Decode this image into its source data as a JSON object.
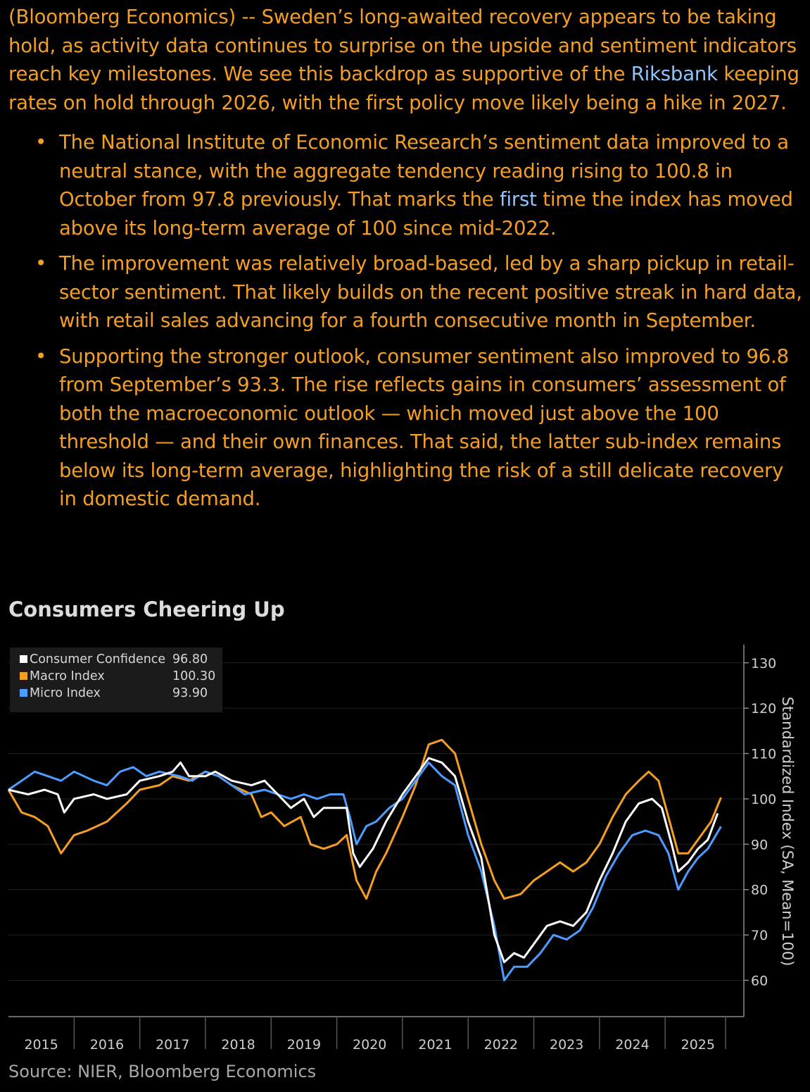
{
  "article": {
    "intro_pre": "(Bloomberg Economics) -- Sweden’s long-awaited recovery appears to be taking hold, as activity data continues to surprise on the upside and sentiment indicators reach key milestones. We see this backdrop as supportive of the ",
    "intro_link": "Riksbank",
    "intro_post": " keeping rates on hold through 2026, with the first policy move likely being a hike in 2027.",
    "bullet1_pre": "The National Institute of Economic Research’s sentiment data improved to a neutral stance, with the aggregate tendency reading rising to 100.8 in October from 97.8 previously. That marks the ",
    "bullet1_link": "first",
    "bullet1_post": " time the index has moved above its long-term average of 100 since mid-2022.",
    "bullet2": "The improvement was relatively broad-based, led by a sharp pickup in retail-sector sentiment. That likely builds on the recent positive streak in hard data, with retail sales advancing for a fourth consecutive month in September.",
    "bullet3": "Supporting the stronger outlook, consumer sentiment also improved to 96.8 from September’s 93.3. The rise reflects gains in consumers’ assessment of both the macroeconomic outlook — which moved just above the 100 threshold — and their own finances. That said, the latter sub-index remains below its long-term average, highlighting the risk of a still delicate recovery in domestic demand."
  },
  "source": "Source: NIER, Bloomberg Economics",
  "chart_data": {
    "type": "line",
    "title": "Consumers Cheering Up",
    "ylabel": "Standardized Index (SA, Mean=100)",
    "xlabel": "",
    "ylim": [
      52,
      134
    ],
    "yticks": [
      60,
      70,
      80,
      90,
      100,
      110,
      120,
      130
    ],
    "xlim": [
      2015.0,
      2025.92
    ],
    "year_labels": [
      "2015",
      "2016",
      "2017",
      "2018",
      "2019",
      "2020",
      "2021",
      "2022",
      "2023",
      "2024",
      "2025"
    ],
    "legend_position": "top-left",
    "series": [
      {
        "name": "Consumer Confidence",
        "last_label": "96.80",
        "color": "#ffffff",
        "points": [
          [
            2015.0,
            102
          ],
          [
            2015.3,
            101
          ],
          [
            2015.55,
            102
          ],
          [
            2015.75,
            101
          ],
          [
            2015.85,
            97
          ],
          [
            2016.0,
            100
          ],
          [
            2016.3,
            101
          ],
          [
            2016.5,
            100
          ],
          [
            2016.8,
            101
          ],
          [
            2017.0,
            104
          ],
          [
            2017.3,
            105
          ],
          [
            2017.5,
            106
          ],
          [
            2017.62,
            108
          ],
          [
            2017.75,
            105
          ],
          [
            2018.0,
            105
          ],
          [
            2018.15,
            106
          ],
          [
            2018.4,
            104
          ],
          [
            2018.7,
            103
          ],
          [
            2018.9,
            104
          ],
          [
            2019.1,
            101
          ],
          [
            2019.3,
            98
          ],
          [
            2019.5,
            100
          ],
          [
            2019.65,
            96
          ],
          [
            2019.8,
            98
          ],
          [
            2020.0,
            98
          ],
          [
            2020.15,
            98
          ],
          [
            2020.25,
            88
          ],
          [
            2020.35,
            85
          ],
          [
            2020.55,
            89
          ],
          [
            2020.75,
            95
          ],
          [
            2021.0,
            101
          ],
          [
            2021.2,
            105
          ],
          [
            2021.4,
            109
          ],
          [
            2021.6,
            108
          ],
          [
            2021.8,
            105
          ],
          [
            2022.0,
            95
          ],
          [
            2022.2,
            87
          ],
          [
            2022.4,
            70
          ],
          [
            2022.55,
            64
          ],
          [
            2022.7,
            66
          ],
          [
            2022.85,
            65
          ],
          [
            2023.0,
            68
          ],
          [
            2023.2,
            72
          ],
          [
            2023.4,
            73
          ],
          [
            2023.6,
            72
          ],
          [
            2023.8,
            75
          ],
          [
            2024.0,
            82
          ],
          [
            2024.2,
            88
          ],
          [
            2024.4,
            95
          ],
          [
            2024.6,
            99
          ],
          [
            2024.8,
            100
          ],
          [
            2024.95,
            98
          ],
          [
            2025.1,
            90
          ],
          [
            2025.2,
            84
          ],
          [
            2025.35,
            86
          ],
          [
            2025.5,
            89
          ],
          [
            2025.65,
            91
          ],
          [
            2025.8,
            96.8
          ]
        ]
      },
      {
        "name": "Macro Index",
        "last_label": "100.30",
        "color": "#f59e25",
        "points": [
          [
            2015.0,
            102
          ],
          [
            2015.2,
            97
          ],
          [
            2015.4,
            96
          ],
          [
            2015.6,
            94
          ],
          [
            2015.8,
            88
          ],
          [
            2016.0,
            92
          ],
          [
            2016.2,
            93
          ],
          [
            2016.5,
            95
          ],
          [
            2016.8,
            99
          ],
          [
            2017.0,
            102
          ],
          [
            2017.3,
            103
          ],
          [
            2017.5,
            105
          ],
          [
            2017.75,
            104
          ],
          [
            2018.0,
            106
          ],
          [
            2018.2,
            105
          ],
          [
            2018.4,
            103
          ],
          [
            2018.7,
            101
          ],
          [
            2018.85,
            96
          ],
          [
            2019.0,
            97
          ],
          [
            2019.2,
            94
          ],
          [
            2019.45,
            96
          ],
          [
            2019.6,
            90
          ],
          [
            2019.8,
            89
          ],
          [
            2020.0,
            90
          ],
          [
            2020.15,
            92
          ],
          [
            2020.3,
            82
          ],
          [
            2020.45,
            78
          ],
          [
            2020.6,
            84
          ],
          [
            2020.75,
            88
          ],
          [
            2021.0,
            96
          ],
          [
            2021.2,
            103
          ],
          [
            2021.4,
            112
          ],
          [
            2021.6,
            113
          ],
          [
            2021.8,
            110
          ],
          [
            2022.0,
            100
          ],
          [
            2022.2,
            90
          ],
          [
            2022.4,
            82
          ],
          [
            2022.55,
            78
          ],
          [
            2022.8,
            79
          ],
          [
            2023.0,
            82
          ],
          [
            2023.2,
            84
          ],
          [
            2023.4,
            86
          ],
          [
            2023.6,
            84
          ],
          [
            2023.8,
            86
          ],
          [
            2024.0,
            90
          ],
          [
            2024.2,
            96
          ],
          [
            2024.4,
            101
          ],
          [
            2024.6,
            104
          ],
          [
            2024.75,
            106
          ],
          [
            2024.9,
            104
          ],
          [
            2025.05,
            96
          ],
          [
            2025.2,
            88
          ],
          [
            2025.35,
            88
          ],
          [
            2025.5,
            91
          ],
          [
            2025.7,
            95
          ],
          [
            2025.85,
            100.3
          ]
        ]
      },
      {
        "name": "Micro Index",
        "last_label": "93.90",
        "color": "#4d9cff",
        "points": [
          [
            2015.0,
            102
          ],
          [
            2015.2,
            104
          ],
          [
            2015.4,
            106
          ],
          [
            2015.6,
            105
          ],
          [
            2015.8,
            104
          ],
          [
            2016.0,
            106
          ],
          [
            2016.3,
            104
          ],
          [
            2016.5,
            103
          ],
          [
            2016.7,
            106
          ],
          [
            2016.9,
            107
          ],
          [
            2017.1,
            105
          ],
          [
            2017.3,
            106
          ],
          [
            2017.6,
            105
          ],
          [
            2017.8,
            104
          ],
          [
            2018.0,
            106
          ],
          [
            2018.2,
            105
          ],
          [
            2018.4,
            103
          ],
          [
            2018.6,
            101
          ],
          [
            2018.9,
            102
          ],
          [
            2019.1,
            101
          ],
          [
            2019.3,
            100
          ],
          [
            2019.5,
            101
          ],
          [
            2019.7,
            100
          ],
          [
            2019.9,
            101
          ],
          [
            2020.1,
            101
          ],
          [
            2020.2,
            96
          ],
          [
            2020.3,
            90
          ],
          [
            2020.45,
            94
          ],
          [
            2020.6,
            95
          ],
          [
            2020.8,
            98
          ],
          [
            2021.0,
            100
          ],
          [
            2021.2,
            104
          ],
          [
            2021.4,
            108
          ],
          [
            2021.6,
            105
          ],
          [
            2021.8,
            103
          ],
          [
            2022.0,
            92
          ],
          [
            2022.2,
            84
          ],
          [
            2022.4,
            72
          ],
          [
            2022.55,
            60
          ],
          [
            2022.7,
            63
          ],
          [
            2022.9,
            63
          ],
          [
            2023.1,
            66
          ],
          [
            2023.3,
            70
          ],
          [
            2023.5,
            69
          ],
          [
            2023.7,
            71
          ],
          [
            2023.9,
            76
          ],
          [
            2024.1,
            83
          ],
          [
            2024.3,
            88
          ],
          [
            2024.5,
            92
          ],
          [
            2024.7,
            93
          ],
          [
            2024.9,
            92
          ],
          [
            2025.05,
            88
          ],
          [
            2025.2,
            80
          ],
          [
            2025.35,
            84
          ],
          [
            2025.5,
            87
          ],
          [
            2025.65,
            89
          ],
          [
            2025.85,
            93.9
          ]
        ]
      }
    ]
  }
}
